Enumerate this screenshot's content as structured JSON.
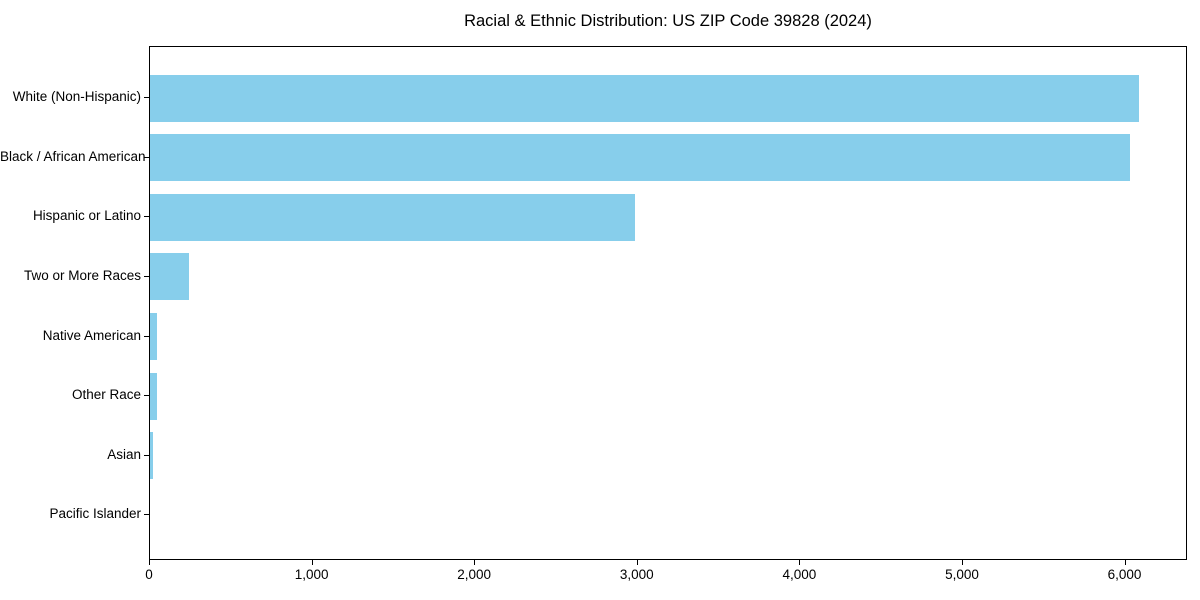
{
  "chart_data": {
    "type": "bar",
    "orientation": "horizontal",
    "title": "Racial & Ethnic Distribution: US ZIP Code 39828 (2024)",
    "categories": [
      "White (Non-Hispanic)",
      "Black / African American",
      "Hispanic or Latino",
      "Two or More Races",
      "Native American",
      "Other Race",
      "Asian",
      "Pacific Islander"
    ],
    "values": [
      6080,
      6030,
      2980,
      240,
      40,
      45,
      20,
      0
    ],
    "xlabel": "",
    "ylabel": "",
    "xlim": [
      0,
      6384
    ],
    "xticks": [
      0,
      1000,
      2000,
      3000,
      4000,
      5000,
      6000
    ],
    "xtick_labels": [
      "0",
      "1,000",
      "2,000",
      "3,000",
      "4,000",
      "5,000",
      "6,000"
    ],
    "bar_color": "#87CEEB",
    "background_color": "#ffffff",
    "spine_color": "#000000",
    "grid": false,
    "legend": null
  }
}
